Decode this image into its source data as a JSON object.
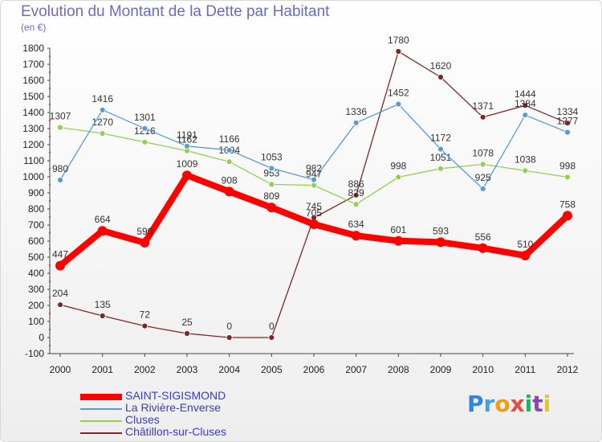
{
  "header": {
    "title": "Evolution du Montant de la Dette par Habitant",
    "subtitle": "(en €)"
  },
  "brand": {
    "logo_letters": [
      {
        "ch": "P",
        "color": "#2e86de"
      },
      {
        "ch": "r",
        "color": "#3aa3e3"
      },
      {
        "ch": "o",
        "color": "#f39c12"
      },
      {
        "ch": "x",
        "color": "#e74c3c"
      },
      {
        "ch": "i",
        "color": "#27ae60"
      },
      {
        "ch": "t",
        "color": "#8e44ad"
      },
      {
        "ch": "i",
        "color": "#f1c40f"
      }
    ]
  },
  "chart_data": {
    "type": "line",
    "title": "Evolution du Montant de la Dette par Habitant",
    "ylabel": "(en €)",
    "xlabel": "",
    "x": [
      2000,
      2001,
      2002,
      2003,
      2004,
      2005,
      2006,
      2007,
      2008,
      2009,
      2010,
      2011,
      2012
    ],
    "ylim": [
      -100,
      1800
    ],
    "yticks": [
      -100,
      0,
      100,
      200,
      300,
      400,
      500,
      600,
      700,
      800,
      900,
      1000,
      1100,
      1200,
      1300,
      1400,
      1500,
      1600,
      1700,
      1800
    ],
    "grid": false,
    "legend_position": "bottom-left",
    "series": [
      {
        "name": "SAINT-SIGISMOND",
        "color": "#ff0000",
        "values": [
          447,
          664,
          590,
          1009,
          908,
          809,
          705,
          634,
          601,
          593,
          556,
          510,
          758
        ]
      },
      {
        "name": "La Rivière-Enverse",
        "color": "#5b9bd5",
        "values": [
          980,
          1416,
          1301,
          1191,
          1166,
          1053,
          982,
          1336,
          1452,
          1172,
          925,
          1384,
          1277
        ]
      },
      {
        "name": "Cluses",
        "color": "#92d050",
        "values": [
          1307,
          1270,
          1216,
          1162,
          1094,
          953,
          947,
          829,
          998,
          1051,
          1078,
          1038,
          998
        ]
      },
      {
        "name": "Châtillon-sur-Cluses",
        "color": "#7b2828",
        "values": [
          204,
          135,
          72,
          25,
          0,
          0,
          745,
          886,
          1780,
          1620,
          1371,
          1444,
          1334
        ]
      }
    ]
  }
}
